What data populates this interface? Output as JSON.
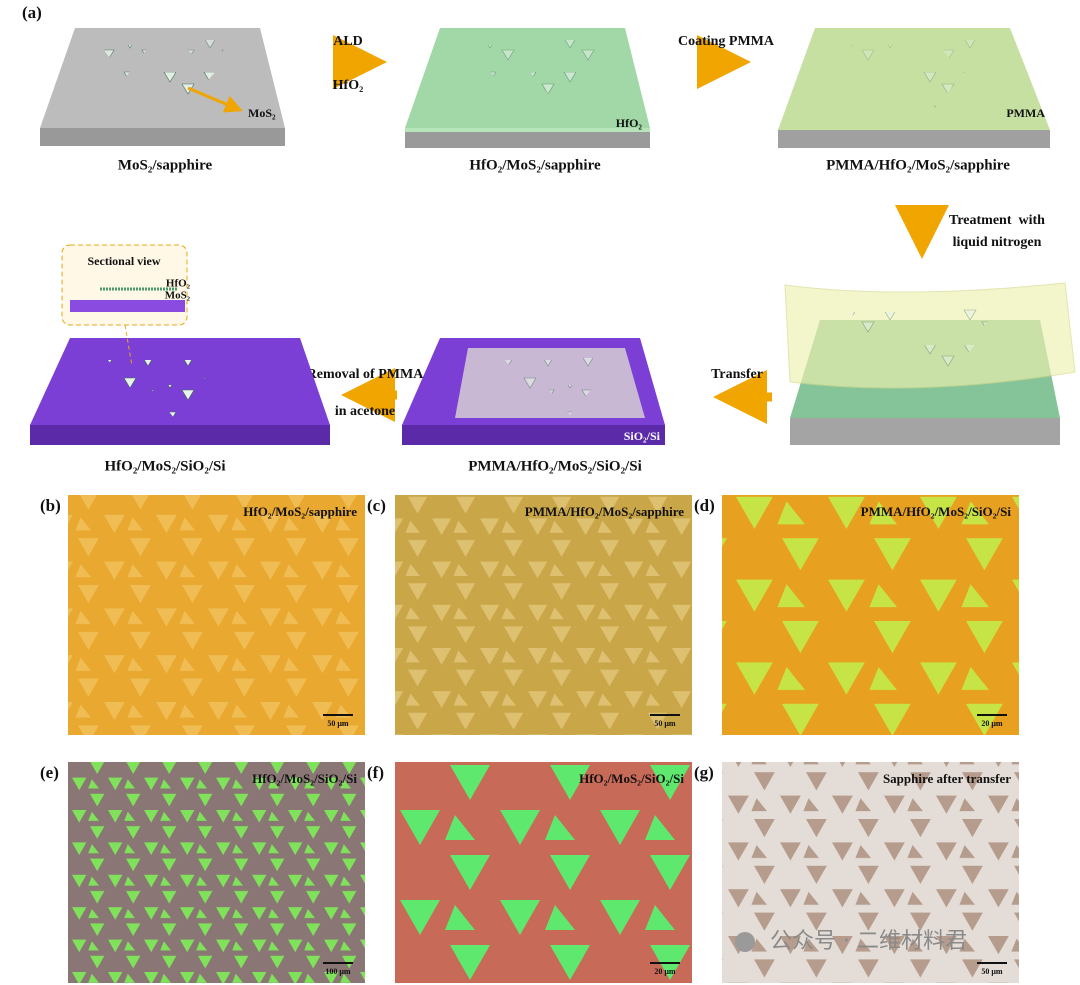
{
  "panel_a": {
    "label": "(a)",
    "steps": [
      {
        "caption": "MoS₂/sapphire",
        "layer": "MoS₂"
      },
      {
        "caption": "HfO₂/MoS₂/sapphire",
        "layer": "HfO₂"
      },
      {
        "caption": "PMMA/HfO₂/MoS₂/sapphire",
        "layer": "PMMA"
      },
      {
        "caption": "PMMA/HfO₂/MoS₂/SiO₂/Si",
        "layer": "SiO₂/Si"
      },
      {
        "caption": "HfO₂/MoS₂/SiO₂/Si"
      }
    ],
    "arrows": [
      {
        "lines": [
          "ALD",
          "HfO₂"
        ]
      },
      {
        "lines": [
          "Coating PMMA"
        ]
      },
      {
        "lines": [
          "Treatment  with",
          "liquid nitrogen"
        ]
      },
      {
        "lines": [
          "Transfer"
        ]
      },
      {
        "lines": [
          "Removal of PMMA",
          "in acetone"
        ]
      }
    ],
    "sectional_view": {
      "title": "Sectional view",
      "layers": [
        "HfO₂",
        "MoS₂"
      ]
    }
  },
  "micrographs": [
    {
      "label": "(b)",
      "title": "HfO₂/MoS₂/sapphire",
      "scale": "50 μm"
    },
    {
      "label": "(c)",
      "title": "PMMA/HfO₂/MoS₂/sapphire",
      "scale": "50 μm"
    },
    {
      "label": "(d)",
      "title": "PMMA/HfO₂/MoS₂/SiO₂/Si",
      "scale": "20 μm"
    },
    {
      "label": "(e)",
      "title": "HfO₂/MoS₂/SiO₂/Si",
      "scale": "100 μm"
    },
    {
      "label": "(f)",
      "title": "HfO₂/MoS₂/SiO₂/Si",
      "scale": "20 μm"
    },
    {
      "label": "(g)",
      "title": "Sapphire after transfer",
      "scale": "50 μm"
    }
  ],
  "watermark": "公众号 · 二维材料君"
}
